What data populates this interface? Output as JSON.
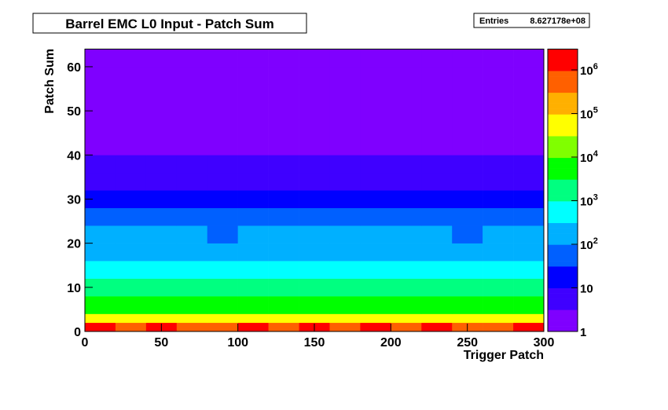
{
  "chart_data": {
    "type": "heatmap",
    "title": "Barrel EMC L0 Input - Patch Sum",
    "stats_label": "Entries",
    "stats_value": "8.627178e+08",
    "xlabel": "Trigger Patch",
    "ylabel": "Patch Sum",
    "xbins": [
      0,
      20,
      40,
      60,
      80,
      100,
      120,
      140,
      160,
      180,
      200,
      220,
      240,
      260,
      280,
      300
    ],
    "ybins": [
      0,
      2,
      4,
      8,
      12,
      16,
      20,
      24,
      28,
      32,
      36,
      40,
      44,
      48,
      52,
      56,
      60,
      64
    ],
    "z": [
      [
        1000000,
        900000,
        1000000,
        950000,
        900000,
        1000000,
        950000,
        1000000,
        900000,
        1000000,
        950000,
        1000000,
        900000,
        950000,
        1000000
      ],
      [
        50000,
        45000,
        50000,
        48000,
        42000,
        50000,
        46000,
        50000,
        45000,
        50000,
        48000,
        50000,
        44000,
        46000,
        50000
      ],
      [
        6000,
        5500,
        6000,
        5800,
        5000,
        6000,
        5500,
        6000,
        5500,
        6000,
        5800,
        6000,
        5200,
        5500,
        6000
      ],
      [
        2000,
        1800,
        2000,
        1900,
        1600,
        2000,
        1800,
        2000,
        1800,
        2000,
        1900,
        2000,
        1700,
        1800,
        2000
      ],
      [
        600,
        550,
        600,
        580,
        500,
        600,
        550,
        600,
        550,
        600,
        580,
        600,
        520,
        550,
        600
      ],
      [
        250,
        220,
        250,
        240,
        200,
        250,
        230,
        250,
        220,
        250,
        240,
        250,
        210,
        230,
        250
      ],
      [
        120,
        100,
        120,
        110,
        90,
        120,
        100,
        120,
        100,
        120,
        110,
        120,
        95,
        100,
        120
      ],
      [
        50,
        45,
        50,
        48,
        40,
        50,
        45,
        50,
        45,
        50,
        48,
        50,
        42,
        45,
        50
      ],
      [
        20,
        18,
        20,
        19,
        16,
        20,
        18,
        20,
        18,
        20,
        19,
        20,
        17,
        18,
        20
      ],
      [
        8,
        7,
        8,
        8,
        6,
        8,
        7,
        8,
        7,
        8,
        8,
        8,
        7,
        7,
        8
      ],
      [
        5,
        4,
        5,
        5,
        4,
        5,
        4,
        5,
        4,
        5,
        5,
        5,
        4,
        4,
        5
      ],
      [
        3,
        3,
        3,
        3,
        2,
        3,
        3,
        3,
        3,
        3,
        3,
        3,
        2,
        3,
        3
      ],
      [
        2,
        2,
        2,
        2,
        2,
        2,
        2,
        2,
        2,
        2,
        2,
        2,
        2,
        2,
        2
      ],
      [
        2,
        1.5,
        2,
        1.5,
        1.5,
        2,
        1.5,
        2,
        1.5,
        2,
        1.5,
        2,
        1.5,
        1.5,
        2
      ],
      [
        1,
        1,
        1,
        1,
        1,
        1,
        1,
        1,
        1,
        1,
        1,
        1,
        1,
        1,
        1
      ],
      [
        1,
        1,
        1,
        1,
        1,
        1,
        1,
        1,
        1,
        1,
        1,
        1,
        1,
        1,
        1
      ],
      [
        2,
        2,
        2,
        2,
        2,
        2,
        2,
        2,
        2,
        2,
        2,
        2,
        2,
        2,
        2
      ]
    ],
    "xlim": [
      0,
      300
    ],
    "ylim": [
      0,
      64
    ],
    "zlim": [
      1,
      3000000
    ],
    "log_z": true,
    "xticks": [
      0,
      50,
      100,
      150,
      200,
      250,
      300
    ],
    "yticks": [
      0,
      10,
      20,
      30,
      40,
      50,
      60
    ],
    "zticks": [
      1,
      10,
      {
        "value": 100,
        "label": "10",
        "exponent": "2"
      },
      {
        "value": 1000,
        "label": "10",
        "exponent": "3"
      },
      {
        "value": 10000,
        "label": "10",
        "exponent": "4"
      },
      {
        "value": 100000,
        "label": "10",
        "exponent": "5"
      },
      {
        "value": 1000000,
        "label": "10",
        "exponent": "6"
      }
    ],
    "palette": [
      "#7f00ff",
      "#3f00ff",
      "#0000ff",
      "#0060ff",
      "#00b0ff",
      "#00ffff",
      "#00ff80",
      "#00ff00",
      "#80ff00",
      "#ffff00",
      "#ffb000",
      "#ff6000",
      "#ff0000"
    ]
  }
}
